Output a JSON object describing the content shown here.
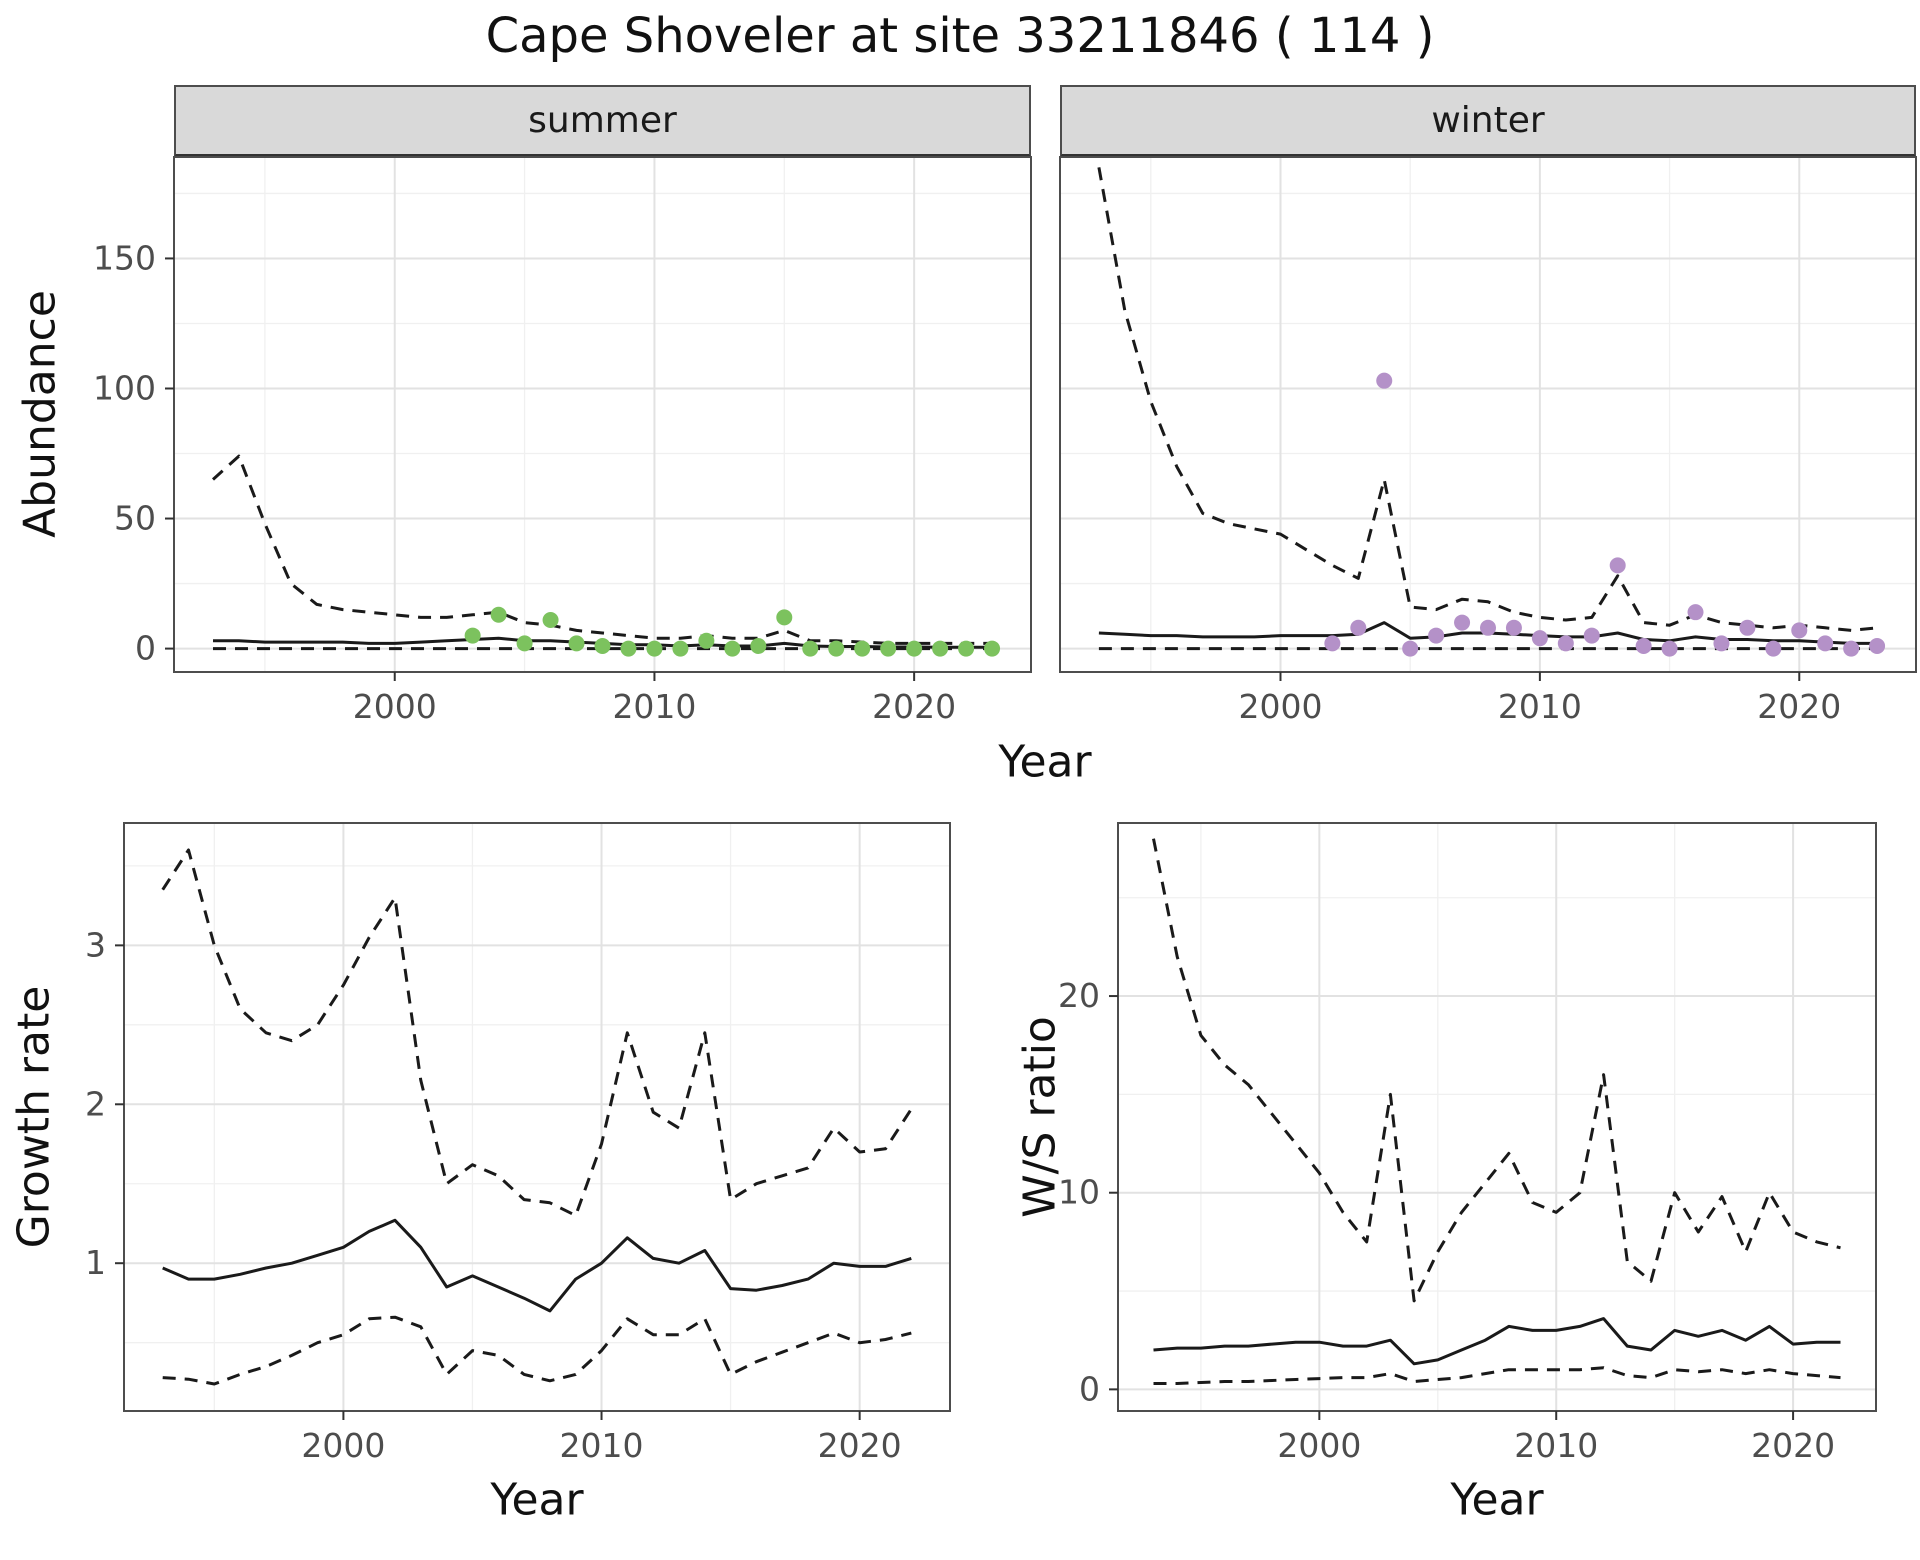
{
  "title": "Cape Shoveler at site 33211846 ( 114 )",
  "facets": [
    {
      "label": "summer"
    },
    {
      "label": "winter"
    }
  ],
  "axes": {
    "abundance": "Abundance",
    "year": "Year",
    "growth_rate": "Growth rate",
    "ws_ratio": "W/S ratio"
  },
  "colors": {
    "line": "#1a1a1a",
    "summer_points": "#7CC25E",
    "winter_points": "#B491C8",
    "strip_bg": "#d9d9d9",
    "grid_major": "#e2e2e2",
    "grid_minor": "#f0f0f0"
  },
  "chart_data": [
    {
      "id": "abundance-summer",
      "type": "line+scatter",
      "facet": "summer",
      "xlabel": "Year",
      "ylabel": "Abundance",
      "xlim": [
        1991.5,
        2024.5
      ],
      "ylim": [
        -9,
        189
      ],
      "xticks": [
        2000,
        2010,
        2020
      ],
      "yticks": [
        0,
        50,
        100,
        150
      ],
      "grid": "on",
      "legend": "none",
      "years": [
        1993,
        1994,
        1995,
        1996,
        1997,
        1998,
        1999,
        2000,
        2001,
        2002,
        2003,
        2004,
        2005,
        2006,
        2007,
        2008,
        2009,
        2010,
        2011,
        2012,
        2013,
        2014,
        2015,
        2016,
        2017,
        2018,
        2019,
        2020,
        2021,
        2022,
        2023
      ],
      "series": [
        {
          "name": "upper-ci",
          "dash": true,
          "values": [
            65,
            74,
            48,
            25,
            17,
            15,
            14,
            13,
            12,
            12,
            13,
            14,
            10,
            9,
            7,
            6,
            5,
            4,
            4,
            5,
            4,
            4,
            7,
            3,
            3,
            2.5,
            2,
            2,
            2,
            2,
            2
          ]
        },
        {
          "name": "estimate",
          "dash": false,
          "values": [
            3,
            3,
            2.5,
            2.5,
            2.5,
            2.5,
            2,
            2,
            2.5,
            3,
            3.5,
            4,
            3,
            3,
            2.5,
            2,
            1.5,
            1.5,
            1,
            1.5,
            1,
            1,
            2,
            1,
            0.8,
            0.8,
            0.6,
            0.6,
            0.5,
            0.5,
            0.5
          ]
        },
        {
          "name": "lower-ci",
          "dash": true,
          "values": [
            0,
            0,
            0,
            0,
            0,
            0,
            0,
            0,
            0,
            0,
            0,
            0,
            0,
            0,
            0,
            0,
            0,
            0,
            0,
            0,
            0,
            0,
            0,
            0,
            0,
            0,
            0,
            0,
            0,
            0,
            0
          ]
        }
      ],
      "points": {
        "name": "observed-count",
        "color": "#7CC25E",
        "x": [
          2003,
          2004,
          2005,
          2006,
          2007,
          2008,
          2009,
          2010,
          2011,
          2012,
          2013,
          2014,
          2015,
          2016,
          2017,
          2018,
          2019,
          2020,
          2021,
          2022,
          2023
        ],
        "y": [
          5,
          13,
          2,
          11,
          2,
          1,
          0,
          0,
          0,
          3,
          0,
          1,
          12,
          0,
          0,
          0,
          0,
          0,
          0,
          0,
          0
        ]
      }
    },
    {
      "id": "abundance-winter",
      "type": "line+scatter",
      "facet": "winter",
      "xlabel": "Year",
      "ylabel": "Abundance",
      "xlim": [
        1991.5,
        2024.5
      ],
      "ylim": [
        -9,
        189
      ],
      "xticks": [
        2000,
        2010,
        2020
      ],
      "yticks": [
        0,
        50,
        100,
        150
      ],
      "grid": "on",
      "legend": "none",
      "years": [
        1993,
        1994,
        1995,
        1996,
        1997,
        1998,
        1999,
        2000,
        2001,
        2002,
        2003,
        2004,
        2005,
        2006,
        2007,
        2008,
        2009,
        2010,
        2011,
        2012,
        2013,
        2014,
        2015,
        2016,
        2017,
        2018,
        2019,
        2020,
        2021,
        2022,
        2023
      ],
      "series": [
        {
          "name": "upper-ci",
          "dash": true,
          "values": [
            185,
            130,
            95,
            70,
            52,
            48,
            46,
            44,
            38,
            32,
            27,
            65,
            16,
            15,
            19,
            18,
            14,
            12,
            11,
            12,
            28,
            10,
            9,
            13,
            10,
            9,
            8,
            9,
            8,
            7,
            8
          ]
        },
        {
          "name": "estimate",
          "dash": false,
          "values": [
            6,
            5.5,
            5,
            5,
            4.5,
            4.5,
            4.5,
            5,
            5,
            5,
            5.5,
            10,
            4,
            4.5,
            6,
            6,
            5.5,
            5,
            4.5,
            4.5,
            6,
            3.5,
            3,
            4.5,
            3.5,
            3.5,
            3,
            3,
            2.5,
            2,
            2
          ]
        },
        {
          "name": "lower-ci",
          "dash": true,
          "values": [
            0,
            0,
            0,
            0,
            0,
            0,
            0,
            0,
            0,
            0,
            0,
            0,
            0,
            0,
            0,
            0,
            0,
            0,
            0,
            0,
            0,
            0,
            0,
            0,
            0,
            0,
            0,
            0,
            0,
            0,
            0
          ]
        }
      ],
      "points": {
        "name": "observed-count",
        "color": "#B491C8",
        "x": [
          2002,
          2003,
          2004,
          2005,
          2006,
          2007,
          2008,
          2009,
          2010,
          2011,
          2012,
          2013,
          2014,
          2015,
          2016,
          2017,
          2018,
          2019,
          2020,
          2021,
          2022,
          2023
        ],
        "y": [
          2,
          8,
          103,
          0,
          5,
          10,
          8,
          8,
          4,
          2,
          5,
          32,
          1,
          0,
          14,
          2,
          8,
          0,
          7,
          2,
          0,
          1
        ]
      }
    },
    {
      "id": "growth-rate",
      "type": "line",
      "xlabel": "Year",
      "ylabel": "Growth rate",
      "xlim": [
        1991.5,
        2023.5
      ],
      "ylim": [
        0.07,
        3.77
      ],
      "xticks": [
        2000,
        2010,
        2020
      ],
      "yticks": [
        1,
        2,
        3
      ],
      "grid": "on",
      "legend": "none",
      "years": [
        1993,
        1994,
        1995,
        1996,
        1997,
        1998,
        1999,
        2000,
        2001,
        2002,
        2003,
        2004,
        2005,
        2006,
        2007,
        2008,
        2009,
        2010,
        2011,
        2012,
        2013,
        2014,
        2015,
        2016,
        2017,
        2018,
        2019,
        2020,
        2021,
        2022
      ],
      "series": [
        {
          "name": "upper-ci",
          "dash": true,
          "values": [
            3.35,
            3.6,
            3.0,
            2.6,
            2.45,
            2.4,
            2.5,
            2.75,
            3.05,
            3.3,
            2.15,
            1.5,
            1.62,
            1.55,
            1.4,
            1.38,
            1.3,
            1.75,
            2.45,
            1.95,
            1.85,
            2.45,
            1.4,
            1.5,
            1.55,
            1.6,
            1.85,
            1.7,
            1.72,
            1.97
          ]
        },
        {
          "name": "estimate",
          "dash": false,
          "values": [
            0.97,
            0.9,
            0.9,
            0.93,
            0.97,
            1.0,
            1.05,
            1.1,
            1.2,
            1.27,
            1.1,
            0.85,
            0.92,
            0.85,
            0.78,
            0.7,
            0.9,
            1.0,
            1.16,
            1.03,
            1.0,
            1.08,
            0.84,
            0.83,
            0.86,
            0.9,
            1.0,
            0.98,
            0.98,
            1.03
          ]
        },
        {
          "name": "lower-ci",
          "dash": true,
          "values": [
            0.28,
            0.27,
            0.24,
            0.3,
            0.35,
            0.42,
            0.5,
            0.55,
            0.65,
            0.66,
            0.6,
            0.3,
            0.45,
            0.42,
            0.3,
            0.26,
            0.3,
            0.45,
            0.65,
            0.55,
            0.55,
            0.65,
            0.3,
            0.38,
            0.44,
            0.5,
            0.56,
            0.5,
            0.52,
            0.56
          ]
        }
      ]
    },
    {
      "id": "ws-ratio",
      "type": "line",
      "xlabel": "Year",
      "ylabel": "W/S ratio",
      "xlim": [
        1991.5,
        2023.5
      ],
      "ylim": [
        -1.1,
        28.8
      ],
      "xticks": [
        2000,
        2010,
        2020
      ],
      "yticks": [
        0,
        10,
        20
      ],
      "grid": "on",
      "legend": "none",
      "years": [
        1993,
        1994,
        1995,
        1996,
        1997,
        1998,
        1999,
        2000,
        2001,
        2002,
        2003,
        2004,
        2005,
        2006,
        2007,
        2008,
        2009,
        2010,
        2011,
        2012,
        2013,
        2014,
        2015,
        2016,
        2017,
        2018,
        2019,
        2020,
        2021,
        2022
      ],
      "series": [
        {
          "name": "upper-ci",
          "dash": true,
          "values": [
            28,
            22,
            18,
            16.5,
            15.5,
            14,
            12.5,
            11,
            9,
            7.5,
            15,
            4.5,
            7,
            9,
            10.5,
            12,
            9.5,
            9,
            10,
            16,
            6.5,
            5.5,
            10,
            8,
            9.8,
            7,
            10,
            8,
            7.5,
            7.2
          ]
        },
        {
          "name": "estimate",
          "dash": false,
          "values": [
            2.0,
            2.1,
            2.1,
            2.2,
            2.2,
            2.3,
            2.4,
            2.4,
            2.2,
            2.2,
            2.5,
            1.3,
            1.5,
            2.0,
            2.5,
            3.2,
            3.0,
            3.0,
            3.2,
            3.6,
            2.2,
            2.0,
            3.0,
            2.7,
            3.0,
            2.5,
            3.2,
            2.3,
            2.4,
            2.4
          ]
        },
        {
          "name": "lower-ci",
          "dash": true,
          "values": [
            0.3,
            0.3,
            0.35,
            0.4,
            0.4,
            0.45,
            0.5,
            0.55,
            0.6,
            0.6,
            0.8,
            0.4,
            0.5,
            0.6,
            0.8,
            1.0,
            1.0,
            1.0,
            1.0,
            1.1,
            0.7,
            0.6,
            1.0,
            0.9,
            1.0,
            0.8,
            1.0,
            0.8,
            0.7,
            0.6
          ]
        }
      ]
    }
  ]
}
